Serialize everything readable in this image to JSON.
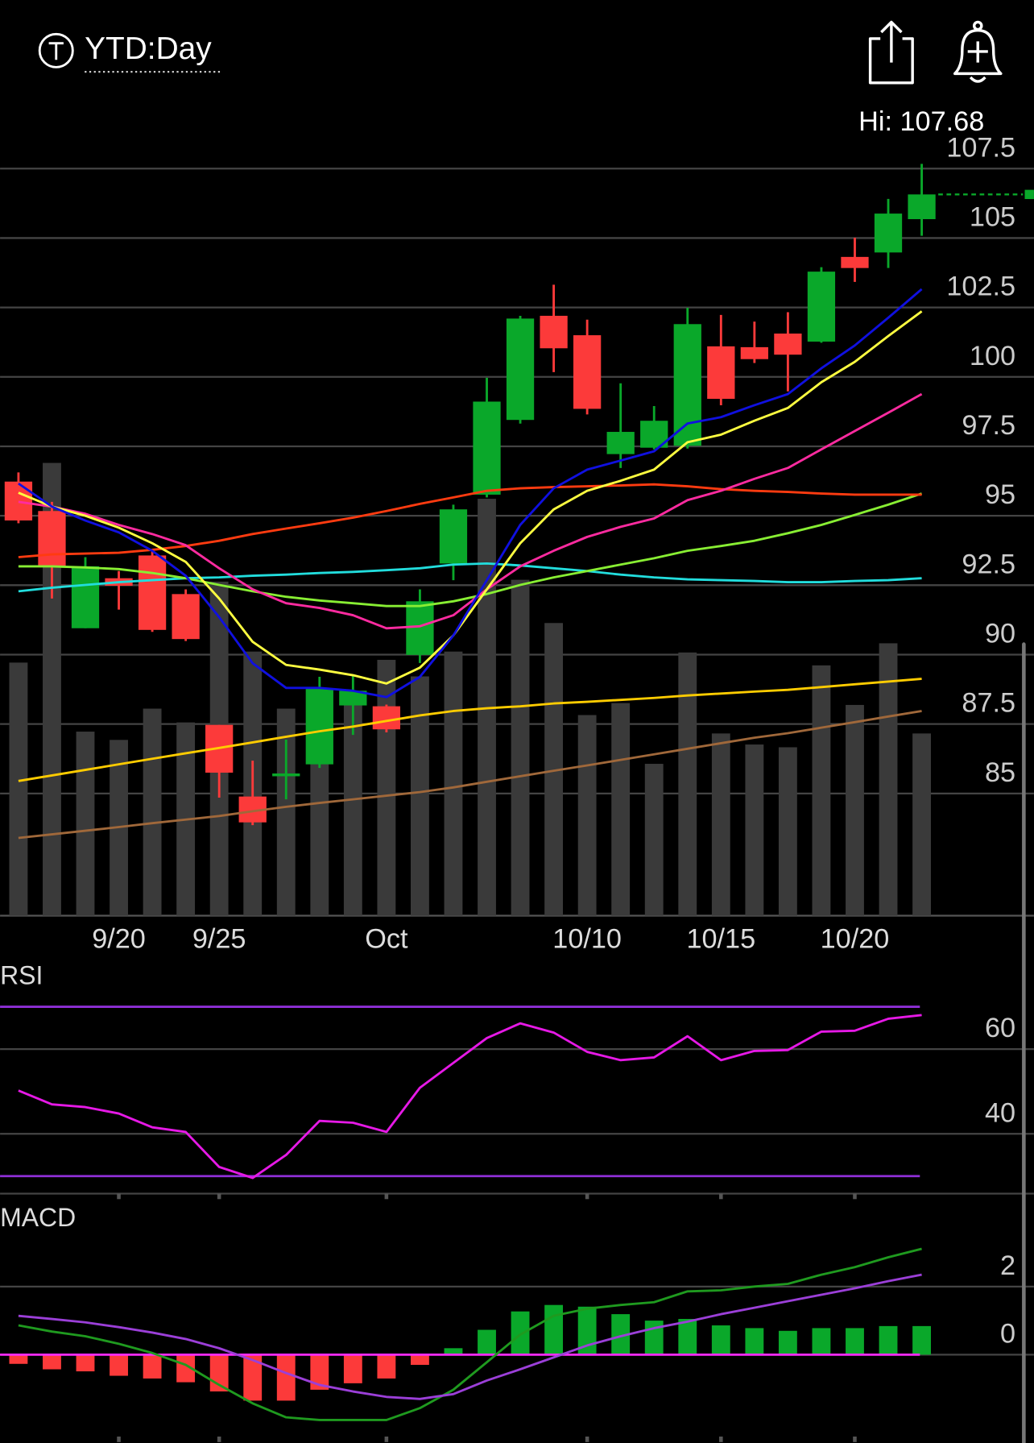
{
  "header": {
    "title": "YTD:Day"
  },
  "chart_data": [
    {
      "type": "candlestick",
      "annotation": "Hi: 107.68",
      "categories": [
        null,
        null,
        null,
        "9/20",
        null,
        null,
        "9/25",
        null,
        null,
        null,
        null,
        "Oct",
        null,
        null,
        null,
        null,
        null,
        "10/10",
        null,
        null,
        null,
        "10/15",
        null,
        null,
        null,
        "10/20",
        null,
        null
      ],
      "open": [
        96.23,
        95.17,
        90.95,
        92.75,
        93.57,
        92.18,
        87.47,
        84.89,
        85.62,
        86.05,
        88.17,
        88.14,
        89.99,
        93.28,
        95.76,
        98.45,
        102.2,
        101.5,
        97.22,
        97.45,
        97.52,
        101.1,
        101.07,
        101.56,
        101.27,
        104.32,
        104.48,
        105.68
      ],
      "high": [
        96.56,
        95.5,
        93.51,
        93.01,
        93.77,
        92.35,
        87.47,
        86.18,
        86.94,
        89.2,
        89.26,
        88.2,
        92.35,
        95.4,
        99.97,
        102.2,
        103.32,
        102.06,
        99.77,
        98.95,
        102.49,
        102.23,
        101.99,
        102.33,
        103.95,
        105.01,
        106.41,
        107.67
      ],
      "low": [
        94.73,
        92.02,
        90.95,
        91.62,
        90.82,
        90.49,
        84.85,
        83.86,
        84.79,
        85.92,
        87.11,
        87.2,
        89.7,
        92.68,
        95.66,
        98.32,
        100.17,
        98.65,
        96.72,
        97.39,
        97.42,
        98.98,
        100.5,
        99.48,
        101.23,
        103.42,
        103.92,
        105.08
      ],
      "close": [
        94.83,
        93.18,
        93.18,
        92.48,
        90.89,
        90.56,
        85.75,
        83.96,
        85.72,
        88.77,
        88.7,
        87.31,
        91.92,
        95.23,
        99.11,
        102.1,
        101.03,
        98.85,
        98.02,
        98.42,
        101.9,
        99.21,
        100.64,
        100.8,
        103.79,
        103.92,
        105.88,
        106.57
      ],
      "up_color": "#0aa82a",
      "down_color": "#fc3a3a",
      "series": [
        {
          "color": "#a0683a",
          "values": [
            83.4,
            83.53,
            83.66,
            83.79,
            83.93,
            84.06,
            84.19,
            84.36,
            84.52,
            84.66,
            84.79,
            84.92,
            85.05,
            85.22,
            85.42,
            85.62,
            85.82,
            86.01,
            86.21,
            86.41,
            86.61,
            86.81,
            87.01,
            87.17,
            87.37,
            87.57,
            87.77,
            87.97
          ]
        },
        {
          "color": "#ffcc00",
          "values": [
            85.45,
            85.65,
            85.85,
            86.05,
            86.25,
            86.45,
            86.64,
            86.84,
            87.04,
            87.24,
            87.41,
            87.61,
            87.81,
            87.97,
            88.07,
            88.14,
            88.24,
            88.3,
            88.37,
            88.44,
            88.53,
            88.6,
            88.67,
            88.73,
            88.83,
            88.93,
            89.03,
            89.13
          ]
        },
        {
          "color": "#22dddd",
          "values": [
            92.28,
            92.41,
            92.51,
            92.61,
            92.68,
            92.75,
            92.78,
            92.84,
            92.88,
            92.94,
            92.98,
            93.04,
            93.11,
            93.24,
            93.28,
            93.21,
            93.11,
            93.01,
            92.88,
            92.78,
            92.71,
            92.68,
            92.65,
            92.61,
            92.61,
            92.65,
            92.68,
            92.75
          ]
        },
        {
          "color": "#88ee33",
          "values": [
            93.18,
            93.18,
            93.14,
            93.08,
            92.94,
            92.75,
            92.51,
            92.28,
            92.08,
            91.95,
            91.85,
            91.75,
            91.75,
            91.92,
            92.18,
            92.51,
            92.78,
            93.01,
            93.24,
            93.47,
            93.74,
            93.91,
            94.1,
            94.37,
            94.67,
            95.03,
            95.4,
            95.8
          ]
        },
        {
          "color": "#ff3b10",
          "values": [
            93.51,
            93.61,
            93.64,
            93.67,
            93.77,
            93.91,
            94.1,
            94.34,
            94.54,
            94.73,
            94.93,
            95.17,
            95.43,
            95.66,
            95.9,
            95.99,
            96.03,
            96.06,
            96.09,
            96.13,
            96.06,
            95.96,
            95.9,
            95.86,
            95.8,
            95.76,
            95.76,
            95.76
          ]
        },
        {
          "color": "#ff2ba0",
          "values": [
            95.5,
            95.33,
            95.07,
            94.67,
            94.34,
            93.94,
            93.11,
            92.35,
            91.85,
            91.68,
            91.42,
            90.95,
            91.02,
            91.42,
            92.35,
            93.18,
            93.74,
            94.24,
            94.6,
            94.9,
            95.56,
            95.9,
            96.33,
            96.72,
            97.39,
            98.05,
            98.71,
            99.38
          ]
        },
        {
          "color": "#ffff40",
          "values": [
            95.83,
            95.33,
            95.0,
            94.57,
            94.01,
            93.34,
            92.02,
            90.46,
            89.63,
            89.46,
            89.26,
            88.96,
            89.53,
            90.69,
            92.35,
            94.01,
            95.23,
            95.9,
            96.26,
            96.66,
            97.65,
            97.92,
            98.42,
            98.88,
            99.81,
            100.54,
            101.47,
            102.36
          ]
        },
        {
          "color": "#1010e0",
          "values": [
            96.16,
            95.33,
            94.83,
            94.4,
            93.74,
            92.84,
            91.35,
            89.69,
            88.8,
            88.8,
            88.7,
            88.47,
            89.2,
            90.69,
            92.68,
            94.67,
            95.99,
            96.66,
            96.99,
            97.32,
            98.32,
            98.55,
            98.98,
            99.38,
            100.31,
            101.13,
            102.13,
            103.16
          ]
        }
      ],
      "volume": {
        "color": "#3a3a3a",
        "ylim": [
          0,
          500
        ],
        "values": [
          275,
          492,
          200,
          191,
          225,
          210,
          363,
          287,
          225,
          225,
          235,
          278,
          260,
          287,
          453,
          365,
          318,
          218,
          231,
          165,
          286,
          198,
          186,
          183,
          272,
          229,
          296,
          198
        ]
      },
      "ylim": [
        80.6,
        108.6
      ],
      "yticks": [
        85,
        87.5,
        90,
        92.5,
        95,
        97.5,
        100,
        102.5,
        105,
        107.5
      ],
      "grid": true
    },
    {
      "type": "line",
      "title": "RSI",
      "series": [
        {
          "color": "#e619e6",
          "values": [
            50.22,
            46.96,
            46.3,
            44.78,
            41.52,
            40.43,
            32.17,
            29.57,
            35,
            43.04,
            42.61,
            40.43,
            50.87,
            56.74,
            62.61,
            66.09,
            63.91,
            59.35,
            57.39,
            58.04,
            63.04,
            57.39,
            59.57,
            59.78,
            64.13,
            64.35,
            67.17,
            68.04
          ]
        }
      ],
      "reference_lines": [
        30,
        70
      ],
      "reference_color": "#8e2fd6",
      "ylim": [
        26,
        80
      ],
      "yticks": [
        40,
        60
      ],
      "grid": true
    },
    {
      "type": "macd",
      "title": "MACD",
      "histogram": {
        "up_color": "#0aa82a",
        "down_color": "#fc3a3a",
        "values": [
          -0.27,
          -0.43,
          -0.49,
          -0.62,
          -0.7,
          -0.81,
          -1.08,
          -1.35,
          -1.35,
          -1.03,
          -0.84,
          -0.7,
          -0.3,
          0.19,
          0.73,
          1.27,
          1.46,
          1.41,
          1.19,
          1.0,
          1.05,
          0.86,
          0.78,
          0.7,
          0.78,
          0.78,
          0.84,
          0.84
        ]
      },
      "series": [
        {
          "color": "#1f9a1f",
          "values": [
            0.86,
            0.68,
            0.54,
            0.32,
            0.05,
            -0.3,
            -0.89,
            -1.43,
            -1.84,
            -1.92,
            -1.92,
            -1.92,
            -1.57,
            -1.03,
            -0.22,
            0.59,
            1.14,
            1.35,
            1.46,
            1.54,
            1.86,
            1.89,
            2.0,
            2.08,
            2.35,
            2.57,
            2.86,
            3.11
          ]
        },
        {
          "color": "#9b3fd8",
          "values": [
            1.14,
            1.05,
            0.95,
            0.81,
            0.65,
            0.46,
            0.19,
            -0.16,
            -0.54,
            -0.89,
            -1.08,
            -1.24,
            -1.3,
            -1.16,
            -0.76,
            -0.43,
            -0.08,
            0.27,
            0.54,
            0.78,
            0.97,
            1.19,
            1.38,
            1.57,
            1.76,
            1.95,
            2.16,
            2.35
          ]
        }
      ],
      "zero_color": "#ff2bff",
      "ylim": [
        -2.6,
        4.65
      ],
      "yticks": [
        0,
        2
      ],
      "grid": true
    }
  ]
}
